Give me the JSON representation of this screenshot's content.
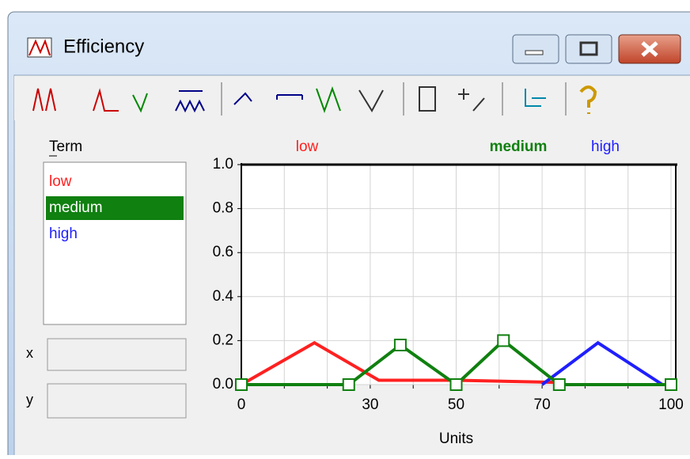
{
  "window": {
    "title": "Efficiency"
  },
  "term_label": "Term",
  "terms": [
    "low",
    "medium",
    "high"
  ],
  "selected_term": 1,
  "x_field_label": "x",
  "y_field_label": "y",
  "chart_data": {
    "type": "line",
    "legend": [
      "low",
      "medium",
      "high"
    ],
    "xlabel": "Units",
    "xlim": [
      0,
      100
    ],
    "ylim": [
      0,
      1
    ],
    "xticks": [
      0,
      {
        "value": 10,
        "label": null
      },
      {
        "value": 20,
        "label": null
      },
      30,
      {
        "value": 40,
        "label": null
      },
      50,
      {
        "value": 60,
        "label": null
      },
      70,
      {
        "value": 80,
        "label": null
      },
      {
        "value": 90,
        "label": null
      },
      100
    ],
    "yticks": [
      {
        "value": 0,
        "label": "0.0"
      },
      0.2,
      0.4,
      0.6,
      0.8,
      {
        "value": 1,
        "label": "1.0"
      }
    ],
    "grid": true,
    "series": [
      {
        "name": "low",
        "color": "#ff2020",
        "x": [
          0,
          17,
          32,
          50,
          74
        ],
        "values": [
          0,
          0.19,
          0.02,
          0.02,
          0.01
        ]
      },
      {
        "name": "high",
        "color": "#1f1fff",
        "x": [
          70,
          83,
          98
        ],
        "values": [
          0,
          0.19,
          0
        ]
      },
      {
        "name": "medium",
        "color": "#108010",
        "markers": true,
        "x": [
          0,
          25,
          37,
          50,
          61,
          74,
          100
        ],
        "values": [
          0,
          0,
          0.18,
          0,
          0.2,
          0,
          0
        ]
      }
    ]
  }
}
